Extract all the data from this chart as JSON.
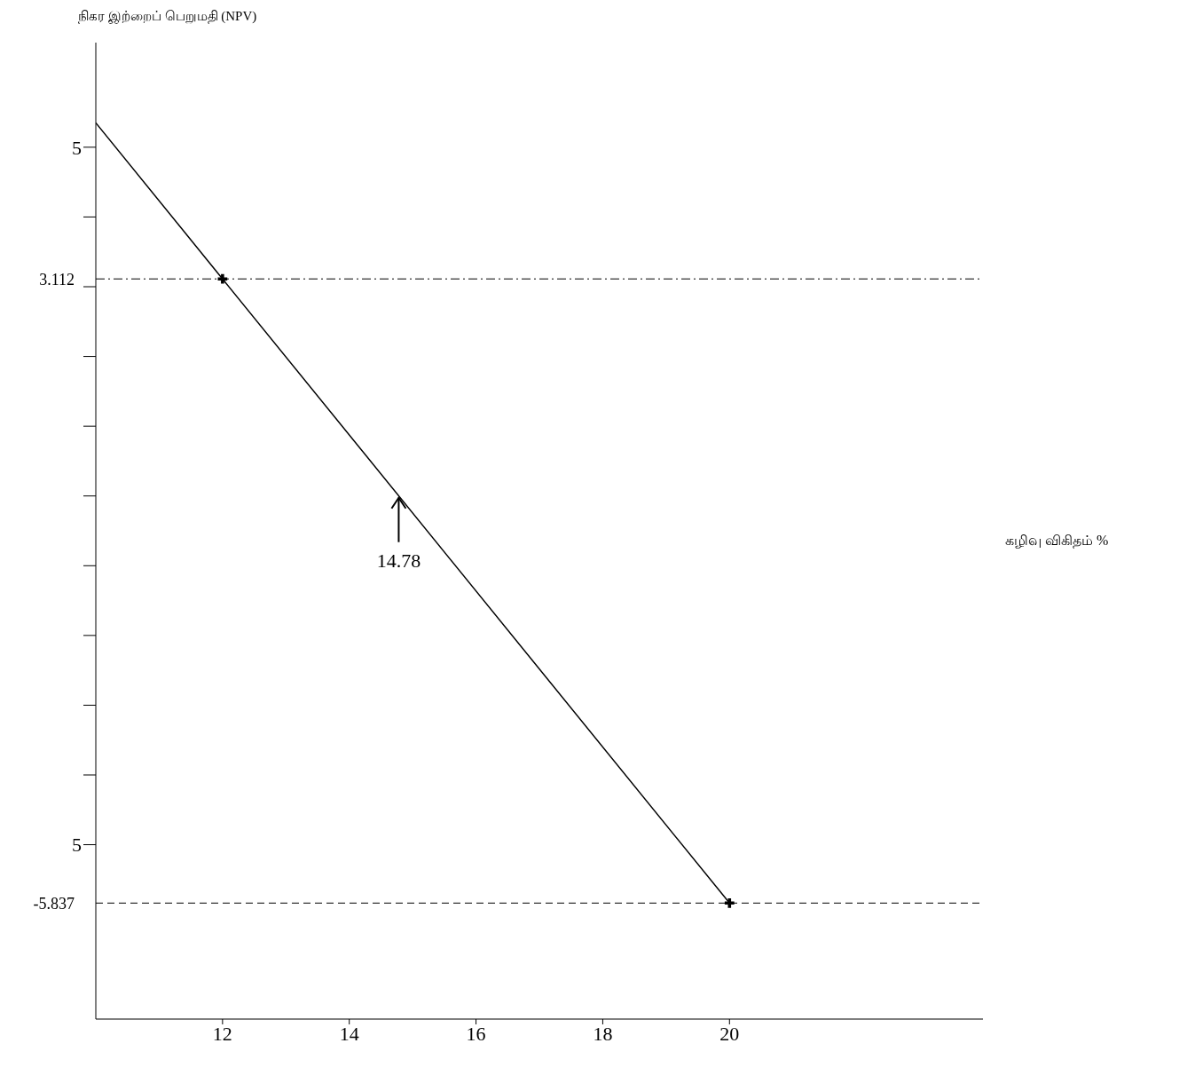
{
  "chart_data": {
    "type": "line",
    "xlabel": "கழிவு விகிதம் %",
    "ylabel": "நிகர இற்றைப் பெறுமதி (NPV)",
    "xlim": [
      10,
      24
    ],
    "xticks": [
      12,
      14,
      16,
      18,
      20
    ],
    "ylim": [
      -7.5,
      6.5
    ],
    "yticks": [
      {
        "value": -5,
        "label": "5"
      },
      {
        "value": -4,
        "label": null
      },
      {
        "value": -3,
        "label": null
      },
      {
        "value": -2,
        "label": null
      },
      {
        "value": -1,
        "label": null
      },
      {
        "value": 0,
        "label": null
      },
      {
        "value": 1,
        "label": null
      },
      {
        "value": 2,
        "label": null
      },
      {
        "value": 3,
        "label": null
      },
      {
        "value": 4,
        "label": null
      },
      5
    ],
    "series": [
      {
        "color": "#000000",
        "x": [
          10,
          12,
          20
        ],
        "values": [
          5.35,
          3.112,
          -5.837
        ],
        "marker": "none"
      },
      {
        "type": "scatter",
        "color": "#000000",
        "x": [
          12,
          20
        ],
        "values": [
          3.112,
          -5.837
        ],
        "marker": "cross"
      }
    ],
    "ref_lines": [
      {
        "axis": "y",
        "value": 3.112,
        "label": "3.112",
        "line_style": "dashdot"
      },
      {
        "axis": "y",
        "value": -5.837,
        "label": "-5.837",
        "line_style": "dashed"
      }
    ],
    "annotations": [
      {
        "text": "14.78",
        "x": 14.78,
        "y": 0
      }
    ],
    "legend": false
  }
}
